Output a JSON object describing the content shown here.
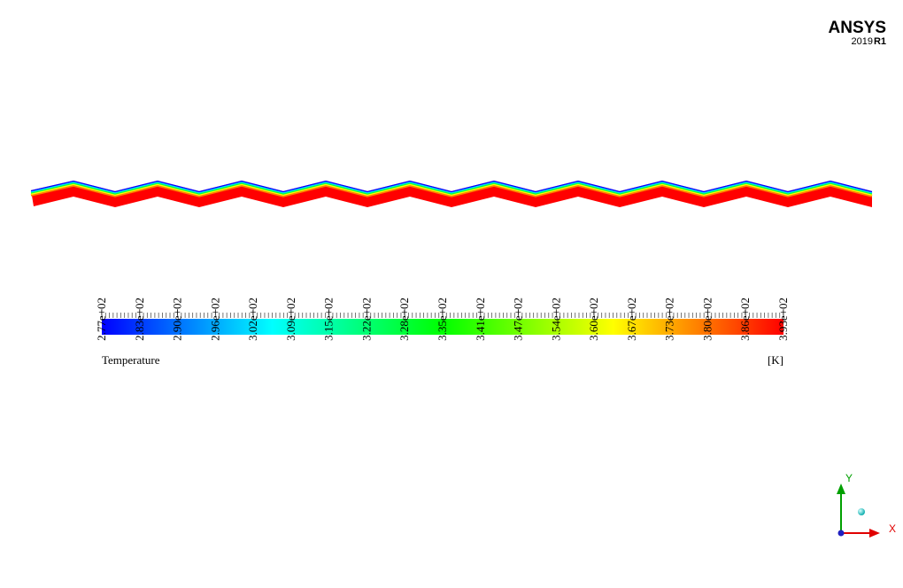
{
  "logo": {
    "brand": "ANSYS",
    "version": "2019",
    "release": "R1"
  },
  "legend": {
    "labels": [
      "2.77e+02",
      "2.83e+02",
      "2.90e+02",
      "2.96e+02",
      "3.02e+02",
      "3.09e+02",
      "3.15e+02",
      "3.22e+02",
      "3.28e+02",
      "3.35e+02",
      "3.41e+02",
      "3.47e+02",
      "3.54e+02",
      "3.60e+02",
      "3.67e+02",
      "3.73e+02",
      "3.80e+02",
      "3.86e+02",
      "3.93e+02"
    ],
    "title": "Temperature",
    "unit": "[K]"
  },
  "triad": {
    "y": "Y",
    "x": "X"
  }
}
